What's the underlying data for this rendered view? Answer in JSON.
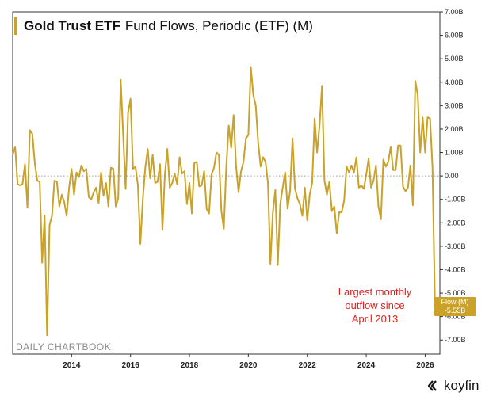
{
  "chart_data": {
    "type": "line",
    "title": "Gold Trust ETF",
    "subtitle": "Fund Flows, Periodic (ETF) (M)",
    "xlabel": "",
    "ylabel": "",
    "xlim": [
      2012.0,
      2026.5
    ],
    "ylim": [
      -7.6,
      7.0
    ],
    "y_ticks": [
      7,
      6,
      5,
      4,
      3,
      2,
      1,
      0,
      -1,
      -2,
      -3,
      -4,
      -5,
      -6,
      -7
    ],
    "y_tick_labels": [
      "7.00B",
      "6.00B",
      "5.00B",
      "4.00B",
      "3.00B",
      "2.00B",
      "1.00B",
      "0.00",
      "-1.00B",
      "-2.00B",
      "-3.00B",
      "-4.00B",
      "-5.00B",
      "-6.00B",
      "-7.00B"
    ],
    "x_ticks": [
      2014,
      2016,
      2018,
      2020,
      2022,
      2024,
      2026
    ],
    "x_tick_labels": [
      "2014",
      "2016",
      "2018",
      "2020",
      "2022",
      "2024",
      "2026"
    ],
    "zero_line": "dotted",
    "series": [
      {
        "name": "Flow (M)",
        "color": "#c9a227",
        "x_start": 2012.0,
        "step": 0.08333,
        "values": [
          0.9,
          1.25,
          -0.35,
          -0.4,
          -0.35,
          0.5,
          -1.35,
          1.95,
          1.8,
          0.55,
          -0.2,
          -0.25,
          -3.7,
          -1.7,
          -6.8,
          -2.1,
          -1.7,
          -0.2,
          -0.25,
          -1.3,
          -0.8,
          -1.1,
          -1.7,
          -0.5,
          0.3,
          -0.8,
          0.15,
          -0.05,
          0.45,
          0.2,
          0.3,
          -0.9,
          -1.0,
          -0.7,
          -0.5,
          -1.15,
          0.15,
          -0.85,
          -0.3,
          -1.3,
          0.35,
          0.3,
          -1.3,
          -0.95,
          4.1,
          1.75,
          -0.55,
          2.7,
          3.3,
          0.3,
          0.4,
          -0.4,
          -2.9,
          -1.0,
          0.35,
          1.15,
          -0.1,
          0.9,
          -0.3,
          -0.25,
          0.5,
          -2.3,
          0.05,
          1.15,
          -0.5,
          -0.3,
          0.1,
          -0.35,
          0.8,
          0.1,
          0.2,
          -1.2,
          -0.3,
          -1.6,
          0.55,
          0.6,
          -0.45,
          -0.4,
          0.2,
          -1.4,
          -1.6,
          0.05,
          0.35,
          1.0,
          0.9,
          -1.5,
          -2.25,
          0.35,
          2.15,
          1.2,
          2.6,
          0.4,
          -0.7,
          0.2,
          0.6,
          1.6,
          1.75,
          4.65,
          3.45,
          3.0,
          1.4,
          0.4,
          0.8,
          0.6,
          -0.3,
          -3.75,
          -1.55,
          -0.6,
          -3.8,
          -1.2,
          -0.5,
          0.15,
          -1.4,
          -0.65,
          1.6,
          -0.55,
          -0.95,
          -1.2,
          -1.7,
          -0.5,
          -1.9,
          -0.8,
          -0.3,
          2.45,
          1.0,
          2.15,
          3.85,
          -0.2,
          -0.8,
          -0.25,
          -1.5,
          -1.3,
          -2.45,
          -1.55,
          -1.55,
          -1.05,
          0.4,
          0.15,
          0.45,
          0.15,
          0.8,
          -0.5,
          -0.4,
          -0.55,
          0.05,
          0.75,
          -0.5,
          -0.2,
          0.45,
          -1.3,
          -1.85,
          0.7,
          0.4,
          0.6,
          1.25,
          0.25,
          0.25,
          1.3,
          1.3,
          -0.45,
          -0.65,
          -0.5,
          0.45,
          -1.25,
          4.05,
          3.45,
          1.0,
          2.5,
          1.0,
          2.5,
          2.45,
          0.35,
          -5.55
        ]
      }
    ],
    "annotation": "Largest monthly outflow since April 2013",
    "last_value_badge": {
      "label": "Flow (M)",
      "value": "-5.55B"
    }
  },
  "header": {
    "title_bold": "Gold Trust ETF",
    "title_rest": "Fund Flows, Periodic (ETF) (M)"
  },
  "annotation": {
    "line1": "Largest monthly",
    "line2": "outflow since",
    "line3": "April 2013"
  },
  "badge": {
    "label": "Flow (M)",
    "value": "-5.55B"
  },
  "watermark": "DAILY CHARTBOOK",
  "brand": "koyfin",
  "colors": {
    "line": "#c9a227",
    "annotation": "#e0221e",
    "badge": "#c9a227",
    "axis": "#222222"
  }
}
